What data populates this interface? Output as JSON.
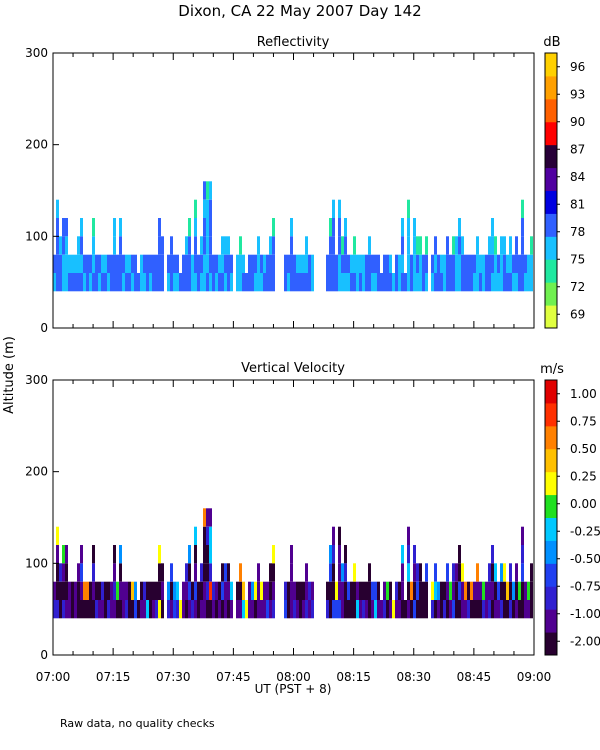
{
  "figure": {
    "title": "Dixon, CA 22 May 2007  Day 142",
    "ylabel": "Altitude (m)",
    "xlabel": "UT  (PST + 8)",
    "footnote": "Raw data, no quality checks",
    "time_ticks": [
      "07:00",
      "07:15",
      "07:30",
      "07:45",
      "08:00",
      "08:15",
      "08:30",
      "08:45",
      "09:00"
    ]
  },
  "chart_data": [
    {
      "type": "heatmap",
      "title": "Reflectivity",
      "xlabel": "UT  (PST + 8)",
      "ylabel": "Altitude (m)",
      "xlim": [
        "07:00",
        "09:00"
      ],
      "ylim": [
        0,
        300
      ],
      "yticks": [
        0,
        100,
        200,
        300
      ],
      "colorbar": {
        "unit": "dB",
        "ticks": [
          "96",
          "93",
          "90",
          "87",
          "84",
          "81",
          "78",
          "75",
          "72",
          "69"
        ],
        "range": [
          68,
          98
        ],
        "colors": [
          "#e0ff40",
          "#70f050",
          "#20e8a0",
          "#18c0ff",
          "#3060ff",
          "#0000e0",
          "#5000a0",
          "#280038",
          "#ff0000",
          "#ff6000",
          "#ffa000",
          "#ffd000"
        ]
      },
      "echo_base_m": 40,
      "echo_typical_top_m": [
        80,
        100
      ],
      "echo_max_top_m": 160,
      "gap_intervals": [
        [
          "07:55",
          "07:57"
        ],
        [
          "08:05",
          "08:08"
        ]
      ]
    },
    {
      "type": "heatmap",
      "title": "Vertical Velocity",
      "xlabel": "UT  (PST + 8)",
      "ylabel": "Altitude (m)",
      "xlim": [
        "07:00",
        "09:00"
      ],
      "ylim": [
        0,
        300
      ],
      "yticks": [
        0,
        100,
        200,
        300
      ],
      "colorbar": {
        "unit": "m/s",
        "ticks": [
          "1.00",
          "0.75",
          "0.50",
          "0.25",
          "0.00",
          "-0.25",
          "-0.50",
          "-0.75",
          "-1.00",
          "-2.00"
        ],
        "range": [
          -2.0,
          1.25
        ],
        "colors": [
          "#280030",
          "#500090",
          "#3020d0",
          "#2040f0",
          "#0090ff",
          "#00c8ff",
          "#20e020",
          "#ffff00",
          "#ffc000",
          "#ff8000",
          "#ff3000",
          "#e00000"
        ]
      },
      "echo_base_m": 40,
      "echo_typical_top_m": [
        80,
        100
      ],
      "echo_max_top_m": 160,
      "gap_intervals": [
        [
          "07:55",
          "07:57"
        ],
        [
          "08:05",
          "08:08"
        ]
      ]
    }
  ]
}
